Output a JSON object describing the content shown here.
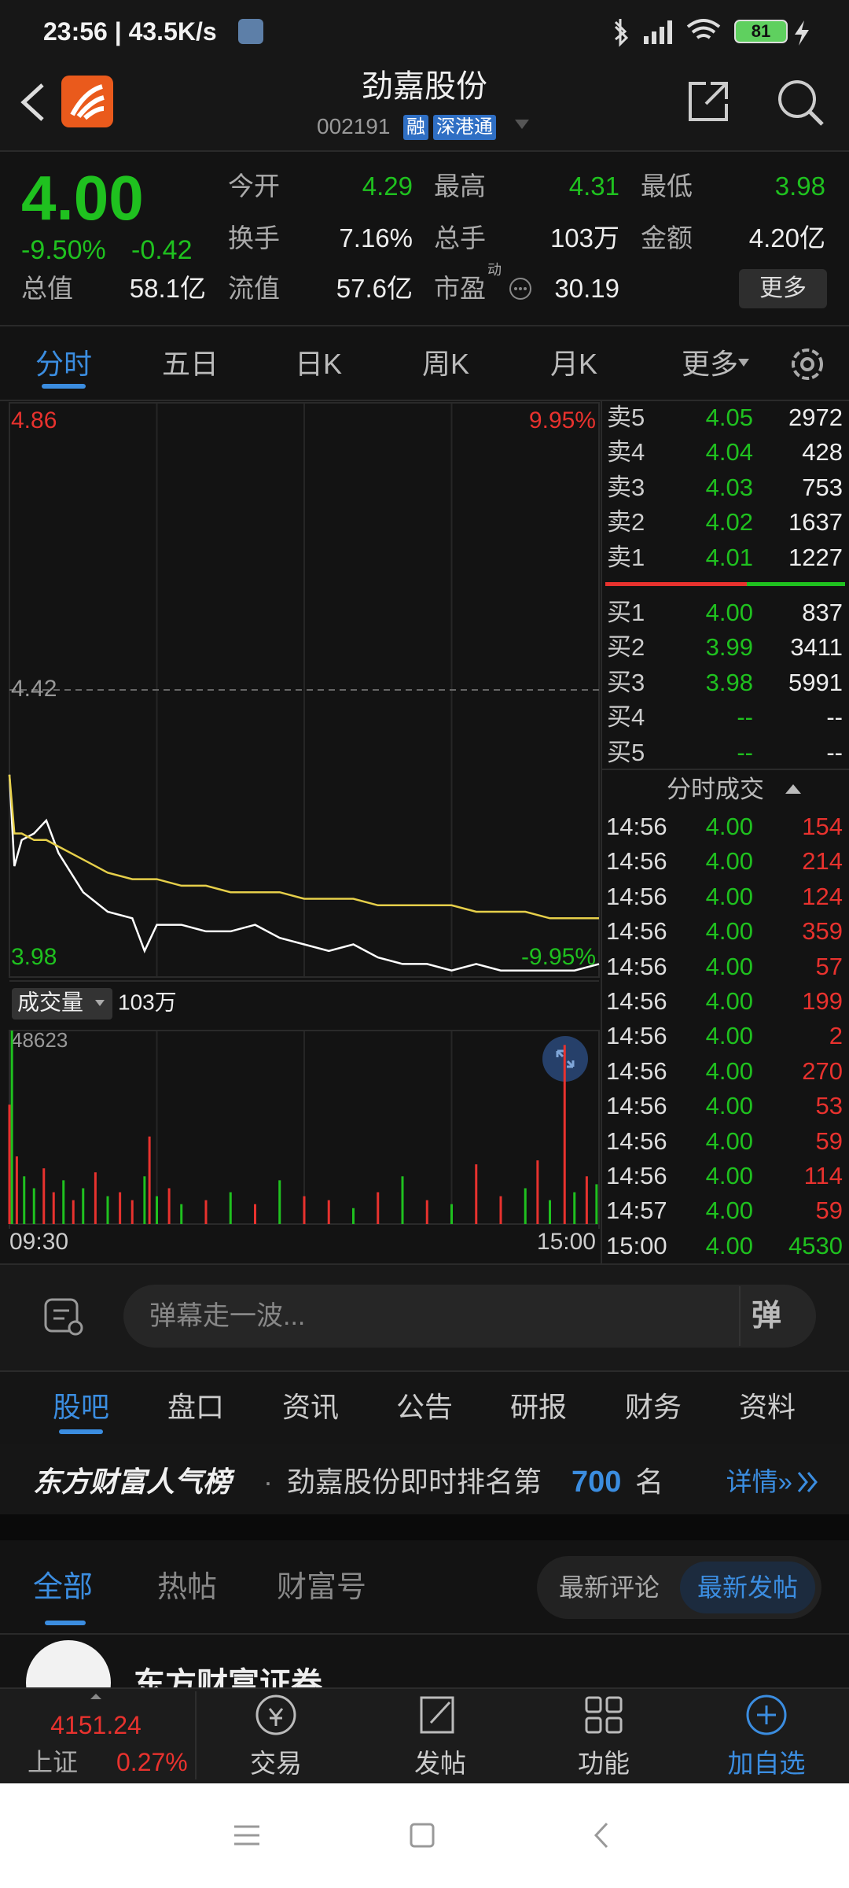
{
  "status_bar": {
    "time": "23:56 | 43.5K/s",
    "battery": "81"
  },
  "header": {
    "title": "劲嘉股份",
    "code": "002191",
    "tags": [
      "融",
      "深港通"
    ]
  },
  "quote": {
    "price": "4.00",
    "change_pct": "-9.50%",
    "change": "-0.42",
    "total_value_label": "总值",
    "total_value": "58.1亿",
    "stats": [
      [
        {
          "label": "今开",
          "value": "4.29",
          "color": "#1fc11f"
        },
        {
          "label": "最高",
          "value": "4.31",
          "color": "#1fc11f"
        },
        {
          "label": "最低",
          "value": "3.98",
          "color": "#1fc11f"
        }
      ],
      [
        {
          "label": "换手",
          "value": "7.16%"
        },
        {
          "label": "总手",
          "value": "103万"
        },
        {
          "label": "金额",
          "value": "4.20亿"
        }
      ],
      [
        {
          "label": "流值",
          "value": "57.6亿"
        },
        {
          "label": "市盈",
          "sup": "动",
          "value": "30.19"
        }
      ]
    ],
    "more_button": "更多"
  },
  "chart_tabs": [
    "分时",
    "五日",
    "日K",
    "周K",
    "月K",
    "更多"
  ],
  "chart_data": [
    {
      "type": "line",
      "x": [
        0,
        2,
        5,
        10,
        15,
        20,
        30,
        40,
        50,
        55,
        60,
        70,
        80,
        90,
        100,
        110,
        120,
        130,
        140,
        150,
        160,
        170,
        180,
        190,
        200,
        210,
        220,
        230,
        240
      ],
      "series": [
        {
          "color": "#ffffff",
          "values": [
            4.29,
            4.15,
            4.19,
            4.2,
            4.22,
            4.17,
            4.11,
            4.08,
            4.07,
            4.02,
            4.06,
            4.06,
            4.05,
            4.05,
            4.06,
            4.04,
            4.03,
            4.02,
            4.03,
            4.01,
            4.0,
            4.0,
            3.99,
            4.0,
            3.99,
            3.99,
            3.99,
            3.99,
            4.0
          ]
        },
        {
          "color": "#e6cf4a",
          "values": [
            4.29,
            4.2,
            4.2,
            4.19,
            4.19,
            4.18,
            4.16,
            4.14,
            4.13,
            4.13,
            4.13,
            4.12,
            4.12,
            4.11,
            4.11,
            4.11,
            4.1,
            4.1,
            4.1,
            4.09,
            4.09,
            4.09,
            4.09,
            4.08,
            4.08,
            4.08,
            4.07,
            4.07,
            4.07
          ]
        }
      ],
      "xlim": [
        0,
        240
      ],
      "ylim": [
        3.98,
        4.86
      ],
      "yticks": [
        4.86,
        4.42,
        3.98
      ],
      "y2lim": [
        -9.95,
        9.95
      ],
      "y2ticks": [
        {
          "value": 9.95,
          "label": "9.95%"
        },
        {
          "value": -9.95,
          "label": "-9.95%"
        }
      ]
    },
    {
      "type": "bar",
      "title": "成交量",
      "subtitle": "103万",
      "x": [
        0,
        1,
        3,
        6,
        10,
        14,
        18,
        22,
        26,
        30,
        35,
        40,
        45,
        50,
        55,
        57,
        60,
        65,
        70,
        80,
        90,
        100,
        110,
        120,
        130,
        140,
        150,
        160,
        170,
        180,
        190,
        200,
        210,
        215,
        220,
        226,
        230,
        235,
        239
      ],
      "values": [
        30000,
        48623,
        17000,
        12000,
        9000,
        14000,
        8000,
        11000,
        6000,
        9000,
        13000,
        7000,
        8000,
        6000,
        12000,
        22000,
        7000,
        9000,
        5000,
        6000,
        8000,
        5000,
        11000,
        7000,
        6000,
        4000,
        8000,
        12000,
        6000,
        5000,
        15000,
        7000,
        9000,
        16000,
        6000,
        45000,
        8000,
        12000,
        10000
      ],
      "colors": [
        "#e8322e",
        "#1fc11f",
        "#e8322e",
        "#1fc11f",
        "#1fc11f",
        "#e8322e",
        "#e8322e",
        "#1fc11f",
        "#e8322e",
        "#1fc11f",
        "#e8322e",
        "#1fc11f",
        "#e8322e",
        "#e8322e",
        "#1fc11f",
        "#e8322e",
        "#1fc11f",
        "#e8322e",
        "#1fc11f",
        "#e8322e",
        "#1fc11f",
        "#e8322e",
        "#1fc11f",
        "#e8322e",
        "#e8322e",
        "#1fc11f",
        "#e8322e",
        "#1fc11f",
        "#e8322e",
        "#1fc11f",
        "#e8322e",
        "#e8322e",
        "#1fc11f",
        "#e8322e",
        "#1fc11f",
        "#e8322e",
        "#1fc11f",
        "#e8322e",
        "#1fc11f"
      ],
      "xlim": [
        0,
        240
      ],
      "xticks": [
        {
          "value": 0,
          "label": "09:30"
        },
        {
          "value": 240,
          "label": "15:00"
        }
      ],
      "ylim": [
        0,
        48623
      ],
      "yticks": [
        48623
      ]
    }
  ],
  "order_book": {
    "asks": [
      {
        "label": "卖5",
        "price": "4.05",
        "volume": "2972"
      },
      {
        "label": "卖4",
        "price": "4.04",
        "volume": "428"
      },
      {
        "label": "卖3",
        "price": "4.03",
        "volume": "753"
      },
      {
        "label": "卖2",
        "price": "4.02",
        "volume": "1637"
      },
      {
        "label": "卖1",
        "price": "4.01",
        "volume": "1227"
      }
    ],
    "bids": [
      {
        "label": "买1",
        "price": "4.00",
        "volume": "837"
      },
      {
        "label": "买2",
        "price": "3.99",
        "volume": "3411"
      },
      {
        "label": "买3",
        "price": "3.98",
        "volume": "5991"
      },
      {
        "label": "买4",
        "price": "--",
        "volume": "--"
      },
      {
        "label": "买5",
        "price": "--",
        "volume": "--"
      }
    ]
  },
  "trades": {
    "title": "分时成交",
    "rows": [
      {
        "time": "14:56",
        "price": "4.00",
        "volume": "154",
        "color": "#e8322e"
      },
      {
        "time": "14:56",
        "price": "4.00",
        "volume": "214",
        "color": "#e8322e"
      },
      {
        "time": "14:56",
        "price": "4.00",
        "volume": "124",
        "color": "#e8322e"
      },
      {
        "time": "14:56",
        "price": "4.00",
        "volume": "359",
        "color": "#e8322e"
      },
      {
        "time": "14:56",
        "price": "4.00",
        "volume": "57",
        "color": "#e8322e"
      },
      {
        "time": "14:56",
        "price": "4.00",
        "volume": "199",
        "color": "#e8322e"
      },
      {
        "time": "14:56",
        "price": "4.00",
        "volume": "2",
        "color": "#e8322e"
      },
      {
        "time": "14:56",
        "price": "4.00",
        "volume": "270",
        "color": "#e8322e"
      },
      {
        "time": "14:56",
        "price": "4.00",
        "volume": "53",
        "color": "#e8322e"
      },
      {
        "time": "14:56",
        "price": "4.00",
        "volume": "59",
        "color": "#e8322e"
      },
      {
        "time": "14:56",
        "price": "4.00",
        "volume": "114",
        "color": "#e8322e"
      },
      {
        "time": "14:57",
        "price": "4.00",
        "volume": "59",
        "color": "#e8322e"
      },
      {
        "time": "15:00",
        "price": "4.00",
        "volume": "4530",
        "color": "#1fc11f"
      }
    ]
  },
  "comment_bar": {
    "placeholder": "弹幕走一波...",
    "button": "弹"
  },
  "detail_tabs": [
    "股吧",
    "盘口",
    "资讯",
    "公告",
    "研报",
    "财务",
    "资料"
  ],
  "ranking": {
    "brand": "东方财富人气榜",
    "separator": "·",
    "text": "劲嘉股份即时排名第",
    "rank": "700",
    "suffix": "名",
    "link": "详情»"
  },
  "post_tabs": [
    "全部",
    "热帖",
    "财富号"
  ],
  "sort_options": [
    "最新评论",
    "最新发帖"
  ],
  "post": {
    "author": "东方财富证券"
  },
  "bottom_nav": {
    "index_value": "4151.24",
    "index_name": "上证",
    "index_change": "0.27%",
    "items": [
      "交易",
      "发帖",
      "功能",
      "加自选"
    ]
  }
}
